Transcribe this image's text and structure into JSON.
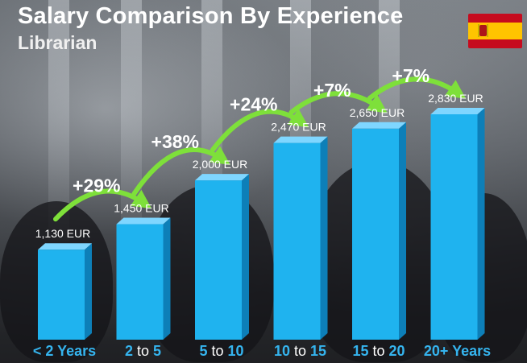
{
  "title": "Salary Comparison By Experience",
  "subtitle": "Librarian",
  "flag_icon": "spain-flag-icon",
  "colors": {
    "bar_front": "#1fb3ef",
    "bar_side": "#0d7fb8",
    "bar_top": "#7fd6ff",
    "arrow": "#7ee03a",
    "category_text": "#35b4ee"
  },
  "chart_data": {
    "type": "bar",
    "unit": "EUR",
    "categories": [
      "< 2 Years",
      "2 to 5",
      "5 to 10",
      "10 to 15",
      "15 to 20",
      "20+ Years"
    ],
    "values": [
      1130,
      1450,
      2000,
      2470,
      2650,
      2830
    ],
    "value_labels": [
      "1,130 EUR",
      "1,450 EUR",
      "2,000 EUR",
      "2,470 EUR",
      "2,650 EUR",
      "2,830 EUR"
    ],
    "increases": [
      "+29%",
      "+38%",
      "+24%",
      "+7%",
      "+7%"
    ],
    "ylim": [
      0,
      2830
    ]
  }
}
